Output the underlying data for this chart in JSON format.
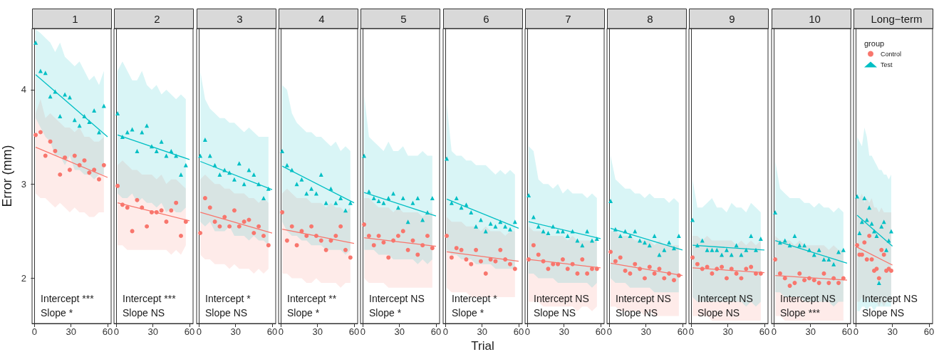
{
  "chart_data": [
    {
      "type": "scatter",
      "title": "1",
      "ylabel": "Error (mm)",
      "xlim": [
        -1.95,
        62.95
      ],
      "xticks": [
        0,
        30,
        60
      ],
      "ylim": [
        1.52,
        4.65
      ],
      "yticks": [
        2,
        3,
        4
      ],
      "annotations": [
        "Intercept ***",
        "Slope *"
      ],
      "series": [
        {
          "color": "#F8766D",
          "marker": "circle",
          "x": [
            1,
            5,
            9,
            13,
            17,
            21,
            25,
            29,
            33,
            37,
            41,
            45,
            49,
            53,
            57
          ],
          "values": [
            3.52,
            3.55,
            3.3,
            3.45,
            3.35,
            3.1,
            3.28,
            3.15,
            3.3,
            3.2,
            3.25,
            3.12,
            3.15,
            3.05,
            3.2
          ],
          "lower": [
            2.9,
            2.85,
            2.85,
            2.8,
            2.75,
            2.8,
            2.75,
            2.7,
            2.75,
            2.7,
            2.7,
            2.65,
            2.65,
            2.7,
            2.7
          ],
          "upper": [
            3.75,
            3.9,
            3.7,
            3.75,
            3.7,
            3.65,
            3.6,
            3.6,
            3.55,
            3.6,
            3.5,
            3.5,
            3.45,
            3.45,
            3.5
          ]
        },
        {
          "type": "scatter",
          "color": "#00BFC4",
          "marker": "triangle",
          "x": [
            1,
            5,
            9,
            13,
            17,
            21,
            25,
            29,
            33,
            37,
            41,
            45,
            49,
            53,
            57
          ],
          "values": [
            4.5,
            4.2,
            4.18,
            3.93,
            3.98,
            3.72,
            3.95,
            3.92,
            3.68,
            3.62,
            3.72,
            3.66,
            3.78,
            3.55,
            3.83
          ],
          "lower": [
            3.7,
            3.6,
            3.5,
            3.45,
            3.3,
            3.3,
            3.2,
            3.3,
            3.15,
            3.15,
            3.1,
            3.1,
            3.05,
            3.1,
            3.1
          ],
          "upper": [
            4.64,
            4.6,
            4.55,
            4.5,
            4.4,
            4.5,
            4.35,
            4.3,
            4.25,
            4.3,
            4.2,
            4.1,
            4.15,
            4.05,
            4.2
          ]
        },
        {
          "type": "line",
          "color": "#F8766D",
          "marker": "none",
          "x": [
            1,
            60
          ],
          "values": [
            3.39,
            3.07
          ]
        },
        {
          "type": "line",
          "color": "#00BFC4",
          "marker": "none",
          "x": [
            1,
            60
          ],
          "values": [
            4.16,
            3.5
          ]
        }
      ]
    },
    {
      "type": "scatter",
      "title": "2",
      "xlim": [
        -1.95,
        62.95
      ],
      "xticks": [
        0,
        30,
        60
      ],
      "ylim": [
        1.52,
        4.65
      ],
      "yticks": [
        2,
        3,
        4
      ],
      "tick_labels": "x",
      "annotations": [
        "Intercept ***",
        "Slope NS"
      ],
      "series": [
        {
          "type": "scatter",
          "color": "#F8766D",
          "marker": "circle",
          "x": [
            1,
            5,
            9,
            13,
            17,
            21,
            25,
            29,
            33,
            37,
            41,
            45,
            49,
            53,
            57
          ],
          "values": [
            2.98,
            2.78,
            2.75,
            2.5,
            2.83,
            2.75,
            2.55,
            2.7,
            2.7,
            2.72,
            2.6,
            2.72,
            2.8,
            2.45,
            2.6
          ],
          "lower": [
            2.35,
            2.35,
            2.3,
            2.3,
            2.3,
            2.3,
            2.3,
            2.3,
            2.3,
            2.3,
            2.3,
            2.25,
            2.3,
            2.25,
            2.35
          ],
          "upper": [
            3.2,
            3.25,
            3.2,
            3.15,
            3.15,
            3.1,
            3.1,
            3.1,
            3.05,
            3.1,
            3.0,
            3.05,
            3.05,
            3.0,
            2.95
          ]
        },
        {
          "type": "scatter",
          "color": "#00BFC4",
          "marker": "triangle",
          "x": [
            1,
            5,
            9,
            13,
            17,
            21,
            25,
            29,
            33,
            37,
            41,
            45,
            49,
            53,
            57
          ],
          "values": [
            3.75,
            3.5,
            3.55,
            3.58,
            3.35,
            3.55,
            3.62,
            3.4,
            3.35,
            3.45,
            3.3,
            3.35,
            3.3,
            3.1,
            3.2
          ],
          "lower": [
            2.9,
            2.85,
            2.85,
            2.9,
            2.8,
            2.85,
            2.8,
            2.8,
            2.75,
            2.8,
            2.7,
            2.75,
            2.7,
            2.7,
            2.75
          ],
          "upper": [
            4.2,
            4.3,
            4.2,
            4.1,
            4.1,
            4.2,
            4.05,
            4.0,
            4.05,
            3.95,
            4.0,
            3.95,
            3.9,
            3.95,
            3.9
          ]
        },
        {
          "type": "line",
          "color": "#F8766D",
          "marker": "none",
          "x": [
            1,
            60
          ],
          "values": [
            2.8,
            2.61
          ]
        },
        {
          "type": "line",
          "color": "#00BFC4",
          "marker": "none",
          "x": [
            1,
            60
          ],
          "values": [
            3.52,
            3.26
          ]
        }
      ]
    },
    {
      "type": "scatter",
      "title": "3",
      "xlim": [
        -1.95,
        62.95
      ],
      "xticks": [
        0,
        30,
        60
      ],
      "ylim": [
        1.52,
        4.65
      ],
      "yticks": [
        2,
        3,
        4
      ],
      "tick_labels": "x",
      "annotations": [
        "Intercept *",
        "Slope NS"
      ],
      "series": [
        {
          "type": "scatter",
          "color": "#F8766D",
          "marker": "circle",
          "x": [
            1,
            5,
            9,
            13,
            17,
            21,
            25,
            29,
            33,
            37,
            41,
            45,
            49,
            53,
            57
          ],
          "values": [
            2.48,
            2.85,
            2.75,
            2.6,
            2.55,
            2.65,
            2.55,
            2.72,
            2.55,
            2.6,
            2.62,
            2.48,
            2.55,
            2.45,
            2.35
          ],
          "lower": [
            2.25,
            2.2,
            2.2,
            2.15,
            2.15,
            2.15,
            2.1,
            2.15,
            2.1,
            2.1,
            2.1,
            2.05,
            2.1,
            2.05,
            2.1
          ],
          "upper": [
            3.05,
            3.1,
            3.05,
            3.0,
            3.0,
            2.95,
            2.95,
            2.9,
            2.9,
            2.9,
            2.85,
            2.85,
            2.8,
            2.85,
            2.8
          ]
        },
        {
          "type": "scatter",
          "color": "#00BFC4",
          "marker": "triangle",
          "x": [
            1,
            5,
            9,
            13,
            17,
            21,
            25,
            29,
            33,
            37,
            41,
            45,
            49,
            53,
            57
          ],
          "values": [
            3.3,
            3.47,
            3.3,
            3.2,
            3.1,
            3.15,
            3.12,
            3.05,
            3.22,
            3.0,
            3.15,
            3.1,
            3.0,
            2.85,
            2.95
          ],
          "lower": [
            2.6,
            2.55,
            2.6,
            2.5,
            2.5,
            2.5,
            2.55,
            2.45,
            2.45,
            2.45,
            2.4,
            2.45,
            2.4,
            2.4,
            2.35
          ],
          "upper": [
            4.2,
            3.9,
            3.8,
            3.75,
            3.7,
            3.7,
            3.65,
            3.65,
            3.6,
            3.55,
            3.6,
            3.55,
            3.5,
            3.5,
            3.5
          ]
        },
        {
          "type": "line",
          "color": "#F8766D",
          "marker": "none",
          "x": [
            1,
            60
          ],
          "values": [
            2.7,
            2.48
          ]
        },
        {
          "type": "line",
          "color": "#00BFC4",
          "marker": "none",
          "x": [
            1,
            60
          ],
          "values": [
            3.24,
            2.94
          ]
        }
      ]
    },
    {
      "type": "scatter",
      "title": "4",
      "xlim": [
        -1.95,
        62.95
      ],
      "xticks": [
        0,
        30,
        60
      ],
      "ylim": [
        1.52,
        4.65
      ],
      "yticks": [
        2,
        3,
        4
      ],
      "tick_labels": "x",
      "annotations": [
        "Intercept **",
        "Slope *"
      ],
      "series": [
        {
          "type": "scatter",
          "color": "#F8766D",
          "marker": "circle",
          "x": [
            1,
            5,
            9,
            13,
            17,
            21,
            25,
            29,
            33,
            37,
            41,
            45,
            49,
            53,
            57
          ],
          "values": [
            2.7,
            2.4,
            2.55,
            2.35,
            2.5,
            2.45,
            2.55,
            2.45,
            2.4,
            2.3,
            2.4,
            2.45,
            2.55,
            2.3,
            2.22
          ],
          "lower": [
            2.05,
            2.05,
            2.0,
            2.0,
            2.0,
            1.95,
            1.95,
            2.0,
            1.95,
            1.95,
            1.95,
            1.95,
            1.9,
            1.95,
            1.95
          ],
          "upper": [
            2.9,
            2.95,
            2.9,
            2.85,
            2.85,
            2.85,
            2.8,
            2.8,
            2.8,
            2.75,
            2.8,
            2.75,
            2.75,
            2.7,
            2.75
          ]
        },
        {
          "type": "scatter",
          "color": "#00BFC4",
          "marker": "triangle",
          "x": [
            1,
            5,
            9,
            13,
            17,
            21,
            25,
            29,
            33,
            37,
            41,
            45,
            49,
            53,
            57
          ],
          "values": [
            3.35,
            3.2,
            3.15,
            3.0,
            3.05,
            2.9,
            2.95,
            2.9,
            3.1,
            2.8,
            2.95,
            2.8,
            2.85,
            2.72,
            2.8
          ],
          "lower": [
            2.6,
            2.5,
            2.45,
            2.45,
            2.4,
            2.4,
            2.35,
            2.35,
            2.35,
            2.3,
            2.3,
            2.3,
            2.3,
            2.25,
            2.3
          ],
          "upper": [
            4.05,
            4.0,
            3.75,
            3.65,
            3.6,
            3.55,
            3.55,
            3.5,
            3.5,
            3.45,
            3.4,
            3.45,
            3.35,
            3.4,
            3.35
          ]
        },
        {
          "type": "line",
          "color": "#F8766D",
          "marker": "none",
          "x": [
            1,
            60
          ],
          "values": [
            2.52,
            2.37
          ]
        },
        {
          "type": "line",
          "color": "#00BFC4",
          "marker": "none",
          "x": [
            1,
            60
          ],
          "values": [
            3.19,
            2.8
          ]
        }
      ]
    },
    {
      "type": "scatter",
      "title": "5",
      "xlim": [
        -1.95,
        62.95
      ],
      "xticks": [
        0,
        30,
        60
      ],
      "ylim": [
        1.52,
        4.65
      ],
      "yticks": [
        2,
        3,
        4
      ],
      "tick_labels": "x",
      "annotations": [
        "Intercept NS",
        "Slope *"
      ],
      "series": [
        {
          "type": "scatter",
          "color": "#F8766D",
          "marker": "circle",
          "x": [
            1,
            5,
            9,
            13,
            17,
            21,
            25,
            29,
            33,
            37,
            41,
            45,
            49,
            53,
            57
          ],
          "values": [
            2.57,
            2.45,
            2.35,
            2.45,
            2.38,
            2.22,
            2.4,
            2.45,
            2.5,
            2.3,
            2.4,
            2.25,
            2.35,
            2.45,
            2.32
          ],
          "lower": [
            2.0,
            1.95,
            1.95,
            1.95,
            1.95,
            1.9,
            1.9,
            1.9,
            1.9,
            1.9,
            1.9,
            1.9,
            1.9,
            1.9,
            1.9
          ],
          "upper": [
            2.85,
            2.85,
            2.8,
            2.75,
            2.75,
            2.75,
            2.7,
            2.75,
            2.7,
            2.7,
            2.7,
            2.7,
            2.65,
            2.7,
            2.7
          ]
        },
        {
          "type": "scatter",
          "color": "#00BFC4",
          "marker": "triangle",
          "x": [
            1,
            5,
            9,
            13,
            17,
            21,
            25,
            29,
            33,
            37,
            41,
            45,
            49,
            53,
            57
          ],
          "values": [
            3.3,
            2.92,
            2.85,
            2.82,
            2.8,
            2.85,
            2.9,
            2.75,
            2.85,
            2.6,
            2.8,
            2.85,
            2.62,
            2.7,
            2.85
          ],
          "lower": [
            2.3,
            2.3,
            2.3,
            2.25,
            2.25,
            2.25,
            2.2,
            2.2,
            2.2,
            2.2,
            2.2,
            2.15,
            2.2,
            2.15,
            2.2
          ],
          "upper": [
            3.95,
            3.5,
            3.45,
            3.4,
            3.35,
            3.45,
            3.35,
            3.35,
            3.4,
            3.3,
            3.3,
            3.3,
            3.35,
            3.3,
            3.3
          ]
        },
        {
          "type": "line",
          "color": "#F8766D",
          "marker": "none",
          "x": [
            1,
            60
          ],
          "values": [
            2.43,
            2.34
          ]
        },
        {
          "type": "line",
          "color": "#00BFC4",
          "marker": "none",
          "x": [
            1,
            60
          ],
          "values": [
            2.91,
            2.66
          ]
        }
      ]
    },
    {
      "type": "scatter",
      "title": "6",
      "xlabel": "Trial",
      "xlim": [
        -1.95,
        62.95
      ],
      "xticks": [
        0,
        30,
        60
      ],
      "ylim": [
        1.52,
        4.65
      ],
      "yticks": [
        2,
        3,
        4
      ],
      "tick_labels": "x",
      "annotations": [
        "Intercept *",
        "Slope *"
      ],
      "series": [
        {
          "type": "scatter",
          "color": "#F8766D",
          "marker": "circle",
          "x": [
            1,
            5,
            9,
            13,
            17,
            21,
            25,
            29,
            33,
            37,
            41,
            45,
            49,
            53,
            57
          ],
          "values": [
            2.45,
            2.22,
            2.32,
            2.3,
            2.2,
            2.15,
            2.3,
            2.18,
            2.05,
            2.2,
            2.18,
            2.3,
            2.2,
            2.15,
            2.1
          ],
          "lower": [
            1.9,
            1.85,
            1.85,
            1.85,
            1.85,
            1.8,
            1.8,
            1.8,
            1.8,
            1.8,
            1.8,
            1.8,
            1.8,
            1.8,
            1.8
          ],
          "upper": [
            2.65,
            2.6,
            2.6,
            2.6,
            2.55,
            2.55,
            2.55,
            2.5,
            2.55,
            2.5,
            2.5,
            2.5,
            2.45,
            2.5,
            2.5
          ]
        },
        {
          "type": "scatter",
          "color": "#00BFC4",
          "marker": "triangle",
          "x": [
            1,
            5,
            9,
            13,
            17,
            21,
            25,
            29,
            33,
            37,
            41,
            45,
            49,
            53,
            57
          ],
          "values": [
            3.27,
            2.8,
            2.85,
            2.75,
            2.78,
            2.7,
            2.55,
            2.62,
            2.5,
            2.58,
            2.55,
            2.6,
            2.55,
            2.52,
            2.6
          ],
          "lower": [
            2.3,
            2.25,
            2.25,
            2.2,
            2.2,
            2.2,
            2.15,
            2.15,
            2.15,
            2.15,
            2.1,
            2.1,
            2.1,
            2.1,
            2.1
          ],
          "upper": [
            3.85,
            3.35,
            3.3,
            3.3,
            3.25,
            3.25,
            3.2,
            3.2,
            3.2,
            3.15,
            3.1,
            3.15,
            3.1,
            3.15,
            3.1
          ]
        },
        {
          "type": "line",
          "color": "#F8766D",
          "marker": "none",
          "x": [
            1,
            60
          ],
          "values": [
            2.28,
            2.18
          ]
        },
        {
          "type": "line",
          "color": "#00BFC4",
          "marker": "none",
          "x": [
            1,
            60
          ],
          "values": [
            2.84,
            2.53
          ]
        }
      ]
    },
    {
      "type": "scatter",
      "title": "7",
      "xlim": [
        -1.95,
        62.95
      ],
      "xticks": [
        0,
        30,
        60
      ],
      "ylim": [
        1.52,
        4.65
      ],
      "yticks": [
        2,
        3,
        4
      ],
      "tick_labels": "x",
      "annotations": [
        "Intercept NS",
        "Slope NS"
      ],
      "series": [
        {
          "type": "scatter",
          "color": "#F8766D",
          "marker": "circle",
          "x": [
            1,
            5,
            9,
            13,
            17,
            21,
            25,
            29,
            33,
            37,
            41,
            45,
            49,
            53,
            57
          ],
          "values": [
            2.2,
            2.35,
            2.25,
            2.18,
            2.1,
            2.15,
            2.15,
            2.2,
            2.1,
            2.15,
            2.05,
            2.2,
            2.05,
            2.1,
            2.1
          ],
          "lower": [
            1.75,
            1.75,
            1.75,
            1.7,
            1.7,
            1.7,
            1.7,
            1.7,
            1.7,
            1.7,
            1.65,
            1.7,
            1.7,
            1.65,
            1.7
          ],
          "upper": [
            2.55,
            2.5,
            2.5,
            2.5,
            2.45,
            2.45,
            2.45,
            2.45,
            2.4,
            2.45,
            2.4,
            2.4,
            2.4,
            2.4,
            2.4
          ]
        },
        {
          "type": "scatter",
          "color": "#00BFC4",
          "marker": "triangle",
          "x": [
            1,
            5,
            9,
            13,
            17,
            21,
            25,
            29,
            33,
            37,
            41,
            45,
            49,
            53,
            57
          ],
          "values": [
            2.88,
            2.65,
            2.55,
            2.5,
            2.48,
            2.55,
            2.5,
            2.5,
            2.45,
            2.5,
            2.4,
            2.35,
            2.5,
            2.4,
            2.42
          ],
          "lower": [
            2.05,
            2.05,
            2.0,
            2.0,
            2.0,
            2.0,
            1.95,
            1.95,
            1.95,
            1.95,
            1.95,
            1.95,
            1.95,
            1.9,
            1.95
          ],
          "upper": [
            3.4,
            3.35,
            3.05,
            3.0,
            3.0,
            2.95,
            3.0,
            2.9,
            2.95,
            2.9,
            2.9,
            2.9,
            2.85,
            2.9,
            2.85
          ]
        },
        {
          "type": "line",
          "color": "#F8766D",
          "marker": "none",
          "x": [
            1,
            60
          ],
          "values": [
            2.2,
            2.11
          ]
        },
        {
          "type": "line",
          "color": "#00BFC4",
          "marker": "none",
          "x": [
            1,
            60
          ],
          "values": [
            2.6,
            2.42
          ]
        }
      ]
    },
    {
      "type": "scatter",
      "title": "8",
      "xlim": [
        -1.95,
        62.95
      ],
      "xticks": [
        0,
        30,
        60
      ],
      "ylim": [
        1.52,
        4.65
      ],
      "yticks": [
        2,
        3,
        4
      ],
      "tick_labels": "x",
      "annotations": [
        "Intercept NS",
        "Slope NS"
      ],
      "series": [
        {
          "type": "scatter",
          "color": "#F8766D",
          "marker": "circle",
          "x": [
            1,
            5,
            9,
            13,
            17,
            21,
            25,
            29,
            33,
            37,
            41,
            45,
            49,
            53,
            57
          ],
          "values": [
            2.28,
            2.18,
            2.22,
            2.08,
            2.05,
            2.15,
            2.1,
            2.0,
            2.12,
            2.05,
            2.1,
            2.0,
            2.05,
            1.98,
            2.03
          ],
          "lower": [
            1.7,
            1.7,
            1.65,
            1.65,
            1.65,
            1.65,
            1.65,
            1.6,
            1.65,
            1.6,
            1.6,
            1.6,
            1.6,
            1.6,
            1.6
          ],
          "upper": [
            2.5,
            2.5,
            2.45,
            2.45,
            2.45,
            2.4,
            2.4,
            2.4,
            2.4,
            2.35,
            2.4,
            2.35,
            2.35,
            2.35,
            2.35
          ]
        },
        {
          "type": "scatter",
          "color": "#00BFC4",
          "marker": "triangle",
          "x": [
            1,
            5,
            9,
            13,
            17,
            21,
            25,
            29,
            33,
            37,
            41,
            45,
            49,
            53,
            57
          ],
          "values": [
            2.82,
            2.52,
            2.45,
            2.5,
            2.45,
            2.5,
            2.4,
            2.38,
            2.35,
            2.45,
            2.25,
            2.3,
            2.38,
            2.32,
            2.45
          ],
          "lower": [
            2.0,
            1.95,
            1.95,
            1.95,
            1.9,
            1.9,
            1.9,
            1.9,
            1.9,
            1.85,
            1.85,
            1.85,
            1.85,
            1.85,
            1.85
          ],
          "upper": [
            3.3,
            3.05,
            3.0,
            2.95,
            2.95,
            2.9,
            2.9,
            2.85,
            2.9,
            2.85,
            2.85,
            2.85,
            2.8,
            2.85,
            2.8
          ]
        },
        {
          "type": "line",
          "color": "#F8766D",
          "marker": "none",
          "x": [
            1,
            60
          ],
          "values": [
            2.16,
            2.03
          ]
        },
        {
          "type": "line",
          "color": "#00BFC4",
          "marker": "none",
          "x": [
            1,
            60
          ],
          "values": [
            2.53,
            2.3
          ]
        }
      ]
    },
    {
      "type": "scatter",
      "title": "9",
      "xlim": [
        -1.95,
        62.95
      ],
      "xticks": [
        0,
        30,
        60
      ],
      "ylim": [
        1.52,
        4.65
      ],
      "yticks": [
        2,
        3,
        4
      ],
      "tick_labels": "x",
      "annotations": [
        "Intercept NS",
        "Slope NS"
      ],
      "series": [
        {
          "type": "scatter",
          "color": "#F8766D",
          "marker": "circle",
          "x": [
            1,
            5,
            9,
            13,
            17,
            21,
            25,
            29,
            33,
            37,
            41,
            45,
            49,
            53,
            57
          ],
          "values": [
            2.22,
            2.15,
            2.1,
            2.12,
            2.05,
            2.1,
            2.12,
            2.0,
            2.1,
            2.05,
            2.0,
            2.1,
            2.12,
            2.05,
            2.05
          ],
          "lower": [
            1.6,
            1.6,
            1.6,
            1.6,
            1.55,
            1.55,
            1.55,
            1.55,
            1.55,
            1.55,
            1.55,
            1.55,
            1.55,
            1.55,
            1.55
          ],
          "upper": [
            2.45,
            2.45,
            2.4,
            2.45,
            2.4,
            2.4,
            2.4,
            2.4,
            2.4,
            2.35,
            2.4,
            2.35,
            2.4,
            2.35,
            2.4
          ]
        },
        {
          "type": "scatter",
          "color": "#00BFC4",
          "marker": "triangle",
          "x": [
            1,
            5,
            9,
            13,
            17,
            21,
            25,
            29,
            33,
            37,
            41,
            45,
            49,
            53,
            57
          ],
          "values": [
            2.62,
            2.35,
            2.4,
            2.3,
            2.3,
            2.3,
            2.25,
            2.3,
            2.25,
            2.35,
            2.25,
            2.3,
            2.45,
            2.3,
            2.42
          ],
          "lower": [
            1.8,
            1.75,
            1.75,
            1.75,
            1.75,
            1.75,
            1.75,
            1.75,
            1.75,
            1.75,
            1.75,
            1.7,
            1.75,
            1.7,
            1.75
          ],
          "upper": [
            3.05,
            2.75,
            2.75,
            2.8,
            2.85,
            2.75,
            2.75,
            2.7,
            2.8,
            2.75,
            2.75,
            2.7,
            2.8,
            2.75,
            2.7
          ]
        },
        {
          "type": "line",
          "color": "#F8766D",
          "marker": "none",
          "x": [
            1,
            60
          ],
          "values": [
            2.11,
            2.06
          ]
        },
        {
          "type": "line",
          "color": "#00BFC4",
          "marker": "none",
          "x": [
            1,
            60
          ],
          "values": [
            2.35,
            2.3
          ]
        }
      ]
    },
    {
      "type": "scatter",
      "title": "10",
      "xlim": [
        -1.95,
        62.95
      ],
      "xticks": [
        0,
        30,
        60
      ],
      "ylim": [
        1.52,
        4.65
      ],
      "yticks": [
        2,
        3,
        4
      ],
      "tick_labels": "x",
      "annotations": [
        "Intercept NS",
        "Slope ***"
      ],
      "series": [
        {
          "type": "scatter",
          "color": "#F8766D",
          "marker": "circle",
          "x": [
            1,
            5,
            9,
            13,
            17,
            21,
            25,
            29,
            33,
            37,
            41,
            45,
            49,
            53,
            57
          ],
          "values": [
            2.2,
            2.05,
            2.0,
            1.92,
            1.95,
            2.05,
            1.98,
            2.0,
            1.98,
            1.95,
            2.05,
            1.95,
            2.0,
            1.95,
            2.0
          ],
          "lower": [
            1.6,
            1.6,
            1.55,
            1.55,
            1.55,
            1.55,
            1.55,
            1.55,
            1.55,
            1.55,
            1.55,
            1.55,
            1.55,
            1.55,
            1.55
          ],
          "upper": [
            2.45,
            2.4,
            2.4,
            2.4,
            2.35,
            2.4,
            2.35,
            2.35,
            2.35,
            2.35,
            2.35,
            2.3,
            2.35,
            2.3,
            2.3
          ]
        },
        {
          "type": "scatter",
          "color": "#00BFC4",
          "marker": "triangle",
          "x": [
            1,
            5,
            9,
            13,
            17,
            21,
            25,
            29,
            33,
            37,
            41,
            45,
            49,
            53,
            57
          ],
          "values": [
            2.7,
            2.38,
            2.4,
            2.35,
            2.45,
            2.35,
            2.35,
            2.3,
            2.25,
            2.3,
            2.2,
            2.2,
            2.15,
            2.28,
            2.3
          ],
          "lower": [
            1.85,
            1.85,
            1.8,
            1.8,
            1.8,
            1.8,
            1.75,
            1.75,
            1.75,
            1.75,
            1.75,
            1.75,
            1.7,
            1.75,
            1.75
          ],
          "upper": [
            3.25,
            2.95,
            2.9,
            2.85,
            2.85,
            2.85,
            2.8,
            2.8,
            2.75,
            2.8,
            2.75,
            2.75,
            2.7,
            2.75,
            2.7
          ]
        },
        {
          "type": "line",
          "color": "#F8766D",
          "marker": "none",
          "x": [
            1,
            60
          ],
          "values": [
            2.03,
            1.98
          ]
        },
        {
          "type": "line",
          "color": "#00BFC4",
          "marker": "none",
          "x": [
            1,
            60
          ],
          "values": [
            2.4,
            2.16
          ]
        }
      ]
    },
    {
      "type": "scatter",
      "title": "Long−term",
      "legend": "top left",
      "legend_title": "group",
      "xlim": [
        -1.95,
        62.95
      ],
      "xticks": [
        0,
        30,
        60
      ],
      "ylim": [
        1.52,
        4.65
      ],
      "yticks": [
        2,
        3,
        4
      ],
      "tick_labels": "x",
      "annotations": [
        "Intercept NS",
        "Slope NS"
      ],
      "series": [
        {
          "type": "scatter",
          "name": "Control",
          "color": "#F8766D",
          "marker": "circle",
          "x": [
            1,
            3,
            5,
            7,
            9,
            11,
            13,
            15,
            17,
            19,
            21,
            23,
            25,
            27,
            29
          ],
          "values": [
            2.35,
            2.25,
            2.25,
            2.38,
            2.2,
            2.45,
            2.2,
            2.08,
            2.1,
            2.0,
            2.3,
            2.25,
            2.08,
            2.1,
            2.08
          ],
          "lower": [
            1.75,
            1.75,
            1.8,
            1.75,
            1.8,
            1.75,
            1.75,
            1.75,
            1.75,
            1.7,
            1.75,
            1.7,
            1.75,
            1.75,
            1.75
          ],
          "upper": [
            2.85,
            2.85,
            2.9,
            2.8,
            2.85,
            2.8,
            2.85,
            2.75,
            2.75,
            2.7,
            2.75,
            2.7,
            2.7,
            2.7,
            2.7
          ]
        },
        {
          "type": "scatter",
          "name": "Test",
          "color": "#00BFC4",
          "marker": "triangle",
          "x": [
            1,
            3,
            5,
            7,
            9,
            11,
            13,
            15,
            17,
            19,
            21,
            23,
            25,
            27,
            29
          ],
          "values": [
            2.87,
            2.48,
            2.6,
            2.85,
            2.62,
            2.75,
            2.58,
            2.5,
            2.45,
            1.95,
            2.55,
            2.6,
            2.3,
            2.4,
            2.5
          ],
          "lower": [
            1.65,
            1.65,
            1.7,
            1.7,
            1.65,
            1.7,
            1.7,
            1.65,
            1.7,
            1.7,
            1.7,
            1.7,
            1.7,
            1.7,
            1.7
          ],
          "upper": [
            3.5,
            3.45,
            3.4,
            3.6,
            3.5,
            3.3,
            3.3,
            3.25,
            3.2,
            3.15,
            3.15,
            3.1,
            3.1,
            3.05,
            3.1
          ]
        },
        {
          "type": "line",
          "color": "#F8766D",
          "marker": "none",
          "x": [
            1,
            30
          ],
          "values": [
            2.33,
            2.14
          ]
        },
        {
          "type": "line",
          "color": "#00BFC4",
          "marker": "none",
          "x": [
            1,
            30
          ],
          "values": [
            2.67,
            2.34
          ]
        }
      ]
    }
  ]
}
